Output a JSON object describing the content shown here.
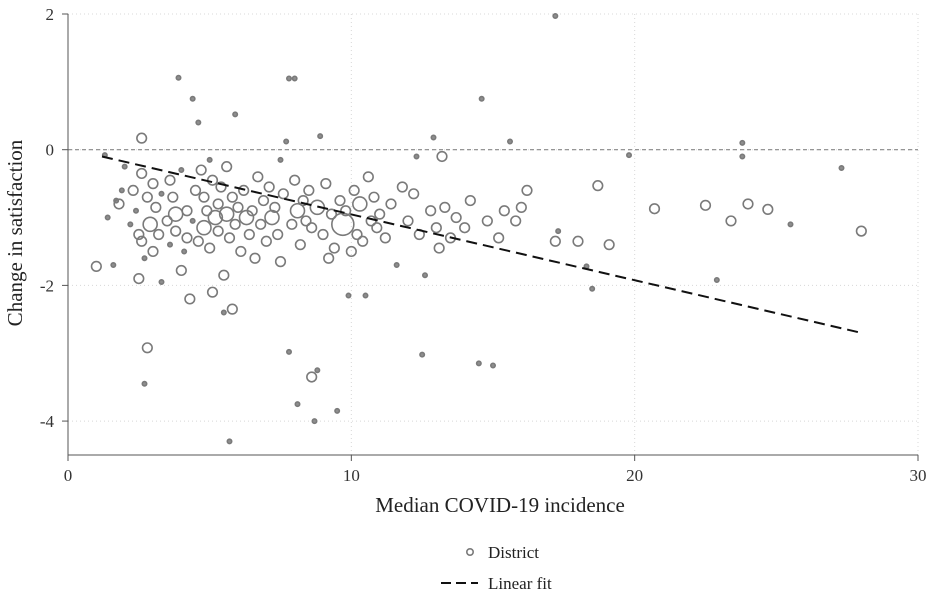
{
  "chart_data": {
    "type": "scatter",
    "title": "",
    "xlabel": "Median COVID-19 incidence",
    "ylabel": "Change in satisfaction",
    "xlim": [
      0,
      30
    ],
    "ylim": [
      -4.5,
      2
    ],
    "xticks": [
      0,
      10,
      20,
      30
    ],
    "yticks": [
      -4,
      -2,
      0,
      2
    ],
    "grid": true,
    "reference_line_y": 0,
    "legend": {
      "placement": "bottom-center",
      "entries": [
        "District",
        "Linear fit"
      ]
    },
    "colors": {
      "points": "#7a7a7a",
      "fit": "#111111",
      "grid": "#d8d8d8",
      "refline": "#888888"
    },
    "series": [
      {
        "name": "District",
        "kind": "scatter",
        "points": [
          [
            1.0,
            -1.72,
            1
          ],
          [
            1.3,
            -0.08,
            0
          ],
          [
            1.4,
            -1.0,
            0
          ],
          [
            1.6,
            -1.7,
            0
          ],
          [
            1.7,
            -0.75,
            0
          ],
          [
            1.8,
            -0.8,
            1
          ],
          [
            1.9,
            -0.6,
            0
          ],
          [
            2.0,
            -0.25,
            0
          ],
          [
            2.2,
            -1.1,
            0
          ],
          [
            2.3,
            -0.6,
            1
          ],
          [
            2.4,
            -0.9,
            0
          ],
          [
            2.5,
            -1.25,
            1
          ],
          [
            2.5,
            -1.9,
            1
          ],
          [
            2.6,
            -0.35,
            1
          ],
          [
            2.6,
            0.17,
            1
          ],
          [
            2.6,
            -1.35,
            1
          ],
          [
            2.7,
            -3.45,
            0
          ],
          [
            2.7,
            -1.6,
            0
          ],
          [
            2.8,
            -2.92,
            1
          ],
          [
            2.8,
            -0.7,
            1
          ],
          [
            2.9,
            -1.1,
            2
          ],
          [
            3.0,
            -0.5,
            1
          ],
          [
            3.0,
            -1.5,
            1
          ],
          [
            3.1,
            -0.85,
            1
          ],
          [
            3.2,
            -1.25,
            1
          ],
          [
            3.3,
            -0.65,
            0
          ],
          [
            3.3,
            -1.95,
            0
          ],
          [
            3.5,
            -1.05,
            1
          ],
          [
            3.6,
            -0.45,
            1
          ],
          [
            3.6,
            -1.4,
            0
          ],
          [
            3.7,
            -0.7,
            1
          ],
          [
            3.8,
            -1.2,
            1
          ],
          [
            3.8,
            -0.95,
            2
          ],
          [
            3.9,
            1.06,
            0
          ],
          [
            4.0,
            -1.78,
            1
          ],
          [
            4.0,
            -0.3,
            0
          ],
          [
            4.1,
            -1.5,
            0
          ],
          [
            4.2,
            -0.9,
            1
          ],
          [
            4.2,
            -1.3,
            1
          ],
          [
            4.3,
            -2.2,
            1
          ],
          [
            4.4,
            -1.05,
            0
          ],
          [
            4.4,
            0.75,
            0
          ],
          [
            4.5,
            -0.6,
            1
          ],
          [
            4.6,
            -1.35,
            1
          ],
          [
            4.6,
            0.4,
            0
          ],
          [
            4.7,
            -0.3,
            1
          ],
          [
            4.8,
            -0.7,
            1
          ],
          [
            4.8,
            -1.15,
            2
          ],
          [
            4.9,
            -0.9,
            1
          ],
          [
            5.0,
            -1.45,
            1
          ],
          [
            5.0,
            -0.15,
            0
          ],
          [
            5.1,
            -0.45,
            1
          ],
          [
            5.1,
            -2.1,
            1
          ],
          [
            5.2,
            -1.0,
            2
          ],
          [
            5.3,
            -0.8,
            1
          ],
          [
            5.3,
            -1.2,
            1
          ],
          [
            5.4,
            -0.55,
            1
          ],
          [
            5.5,
            -2.4,
            0
          ],
          [
            5.5,
            -1.85,
            1
          ],
          [
            5.6,
            -0.25,
            1
          ],
          [
            5.6,
            -0.95,
            2
          ],
          [
            5.7,
            -4.3,
            0
          ],
          [
            5.7,
            -1.3,
            1
          ],
          [
            5.8,
            -0.7,
            1
          ],
          [
            5.8,
            -2.35,
            1
          ],
          [
            5.9,
            0.52,
            0
          ],
          [
            5.9,
            -1.1,
            1
          ],
          [
            6.0,
            -0.85,
            1
          ],
          [
            6.1,
            -1.5,
            1
          ],
          [
            6.2,
            -0.6,
            1
          ],
          [
            6.3,
            -1.0,
            2
          ],
          [
            6.4,
            -1.25,
            1
          ],
          [
            6.5,
            -0.9,
            1
          ],
          [
            6.6,
            -1.6,
            1
          ],
          [
            6.7,
            -0.4,
            1
          ],
          [
            6.8,
            -1.1,
            1
          ],
          [
            6.9,
            -0.75,
            1
          ],
          [
            7.0,
            -1.35,
            1
          ],
          [
            7.1,
            -0.55,
            1
          ],
          [
            7.2,
            -1.0,
            2
          ],
          [
            7.3,
            -0.85,
            1
          ],
          [
            7.4,
            -1.25,
            1
          ],
          [
            7.5,
            -0.15,
            0
          ],
          [
            7.5,
            -1.65,
            1
          ],
          [
            7.6,
            -0.65,
            1
          ],
          [
            7.7,
            0.12,
            0
          ],
          [
            7.8,
            1.05,
            0
          ],
          [
            7.8,
            -2.98,
            0
          ],
          [
            7.9,
            -1.1,
            1
          ],
          [
            8.0,
            -0.45,
            1
          ],
          [
            8.0,
            1.05,
            0
          ],
          [
            8.1,
            -3.75,
            0
          ],
          [
            8.1,
            -0.9,
            2
          ],
          [
            8.2,
            -1.4,
            1
          ],
          [
            8.3,
            -0.75,
            1
          ],
          [
            8.4,
            -1.05,
            1
          ],
          [
            8.5,
            -0.6,
            1
          ],
          [
            8.6,
            -1.15,
            1
          ],
          [
            8.6,
            -3.35,
            1
          ],
          [
            8.7,
            -4.0,
            0
          ],
          [
            8.8,
            -3.25,
            0
          ],
          [
            8.8,
            -0.85,
            2
          ],
          [
            8.9,
            0.2,
            0
          ],
          [
            9.0,
            -1.25,
            1
          ],
          [
            9.1,
            -0.5,
            1
          ],
          [
            9.2,
            -1.6,
            1
          ],
          [
            9.3,
            -0.95,
            1
          ],
          [
            9.4,
            -1.45,
            1
          ],
          [
            9.5,
            -3.85,
            0
          ],
          [
            9.6,
            -0.75,
            1
          ],
          [
            9.7,
            -1.1,
            3
          ],
          [
            9.8,
            -0.9,
            1
          ],
          [
            9.9,
            -2.15,
            0
          ],
          [
            10.0,
            -1.5,
            1
          ],
          [
            10.1,
            -0.6,
            1
          ],
          [
            10.2,
            -1.25,
            1
          ],
          [
            10.3,
            -0.8,
            2
          ],
          [
            10.4,
            -1.35,
            1
          ],
          [
            10.5,
            -2.15,
            0
          ],
          [
            10.6,
            -0.4,
            1
          ],
          [
            10.7,
            -1.05,
            1
          ],
          [
            10.8,
            -0.7,
            1
          ],
          [
            10.9,
            -1.15,
            1
          ],
          [
            11.0,
            -0.95,
            1
          ],
          [
            11.2,
            -1.3,
            1
          ],
          [
            11.4,
            -0.8,
            1
          ],
          [
            11.6,
            -1.7,
            0
          ],
          [
            11.8,
            -0.55,
            1
          ],
          [
            12.0,
            -1.05,
            1
          ],
          [
            12.2,
            -0.65,
            1
          ],
          [
            12.3,
            -0.1,
            0
          ],
          [
            12.4,
            -1.25,
            1
          ],
          [
            12.5,
            -3.02,
            0
          ],
          [
            12.6,
            -1.85,
            0
          ],
          [
            12.8,
            -0.9,
            1
          ],
          [
            12.9,
            0.18,
            0
          ],
          [
            13.0,
            -1.15,
            1
          ],
          [
            13.1,
            -1.45,
            1
          ],
          [
            13.2,
            -0.1,
            1
          ],
          [
            13.3,
            -0.85,
            1
          ],
          [
            13.5,
            -1.3,
            1
          ],
          [
            13.7,
            -1.0,
            1
          ],
          [
            14.0,
            -1.15,
            1
          ],
          [
            14.2,
            -0.75,
            1
          ],
          [
            14.5,
            -3.15,
            0
          ],
          [
            14.6,
            0.75,
            0
          ],
          [
            14.8,
            -1.05,
            1
          ],
          [
            15.0,
            -3.18,
            0
          ],
          [
            15.2,
            -1.3,
            1
          ],
          [
            15.4,
            -0.9,
            1
          ],
          [
            15.6,
            0.12,
            0
          ],
          [
            15.8,
            -1.05,
            1
          ],
          [
            16.0,
            -0.85,
            1
          ],
          [
            16.2,
            -0.6,
            1
          ],
          [
            17.2,
            1.97,
            0
          ],
          [
            17.2,
            -1.35,
            1
          ],
          [
            17.3,
            -1.2,
            0
          ],
          [
            18.0,
            -1.35,
            1
          ],
          [
            18.3,
            -1.72,
            0
          ],
          [
            18.5,
            -2.05,
            0
          ],
          [
            18.7,
            -0.53,
            1
          ],
          [
            19.1,
            -1.4,
            1
          ],
          [
            19.8,
            -0.08,
            0
          ],
          [
            20.7,
            -0.87,
            1
          ],
          [
            22.5,
            -0.82,
            1
          ],
          [
            22.9,
            -1.92,
            0
          ],
          [
            23.4,
            -1.05,
            1
          ],
          [
            23.8,
            -0.1,
            0
          ],
          [
            23.8,
            0.1,
            0
          ],
          [
            24.0,
            -0.8,
            1
          ],
          [
            24.7,
            -0.88,
            1
          ],
          [
            25.5,
            -1.1,
            0
          ],
          [
            27.3,
            -0.27,
            0
          ],
          [
            28.0,
            -1.2,
            1
          ]
        ]
      },
      {
        "name": "Linear fit",
        "kind": "line",
        "x": [
          1.2,
          28.0
        ],
        "y": [
          -0.1,
          -2.7
        ]
      }
    ]
  }
}
